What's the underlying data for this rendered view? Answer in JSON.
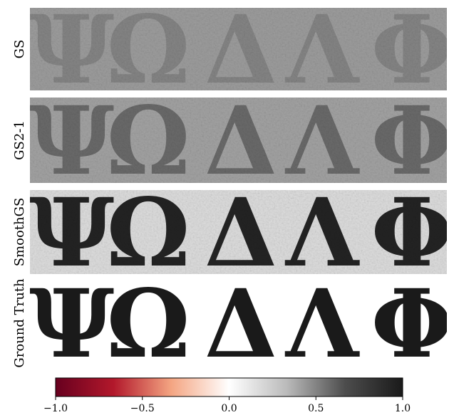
{
  "chart_data": {
    "type": "image",
    "symbols": [
      "Ψ",
      "Ω",
      "Δ",
      "Λ",
      "Φ"
    ],
    "panels": [
      {
        "label": "GS",
        "background": "#9d9d9d",
        "glyph_color": "#858585",
        "noise": true
      },
      {
        "label": "GS2-1",
        "background": "#a3a3a3",
        "glyph_color": "#6a6a6a",
        "noise": true
      },
      {
        "label": "SmoothGS",
        "background": "#dedede",
        "glyph_color": "#232323",
        "noise": true
      },
      {
        "label": "Ground Truth",
        "background": "#ffffff",
        "glyph_color": "#1a1a1a",
        "noise": false
      }
    ],
    "colorbar": {
      "colors": [
        "#67001f",
        "#b2182b",
        "#f4a582",
        "#ffffff",
        "#bababa",
        "#4d4d4d",
        "#1a1a1a"
      ],
      "xlim": [
        -1.0,
        1.0
      ],
      "xticks": [
        {
          "value": -1.0,
          "label": "−1.0"
        },
        {
          "value": -0.5,
          "label": "−0.5"
        },
        {
          "value": 0.0,
          "label": "0.0"
        },
        {
          "value": 0.5,
          "label": "0.5"
        },
        {
          "value": 1.0,
          "label": "1.0"
        }
      ]
    }
  }
}
